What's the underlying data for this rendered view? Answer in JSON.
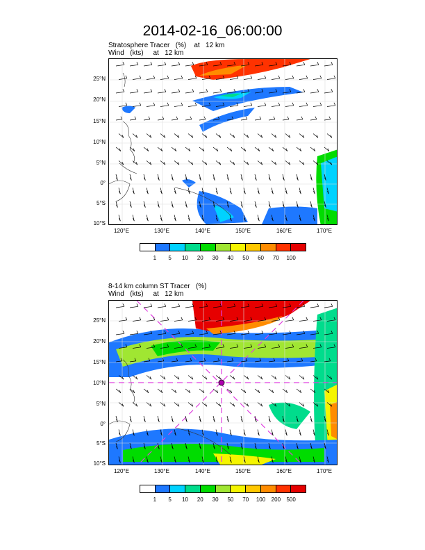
{
  "title": "2014-02-16_06:00:00",
  "panels": [
    {
      "line1": "Stratosphere Tracer   (%)    at   12 km",
      "line2": "Wind   (kts)     at   12 km",
      "lat_labels": [
        "25°N",
        "20°N",
        "15°N",
        "10°N",
        "5°N",
        "0°",
        "5°S",
        "10°S"
      ],
      "lon_labels": [
        "120°E",
        "130°E",
        "140°E",
        "150°E",
        "160°E",
        "170°E"
      ],
      "colorbar": {
        "labels": [
          "1",
          "5",
          "10",
          "20",
          "30",
          "40",
          "50",
          "60",
          "70",
          "100"
        ],
        "colors": [
          "#ffffff",
          "#1e78ff",
          "#00d2ff",
          "#00dc8c",
          "#00dc00",
          "#a0e632",
          "#f5f500",
          "#ffc800",
          "#ff8c00",
          "#ff3200",
          "#e60000"
        ]
      }
    },
    {
      "line1": "8-14 km column ST Tracer   (%)",
      "line2": "Wind   (kts)     at   12 km",
      "lat_labels": [
        "25°N",
        "20°N",
        "15°N",
        "10°N",
        "5°N",
        "0°",
        "5°S",
        "10°S"
      ],
      "lon_labels": [
        "120°E",
        "130°E",
        "140°E",
        "150°E",
        "160°E",
        "170°E"
      ],
      "colorbar": {
        "labels": [
          "1",
          "5",
          "10",
          "20",
          "30",
          "50",
          "70",
          "100",
          "200",
          "500"
        ],
        "colors": [
          "#ffffff",
          "#1e78ff",
          "#00d2ff",
          "#00dc8c",
          "#00dc00",
          "#a0e632",
          "#f5f500",
          "#ffc800",
          "#ff8c00",
          "#ff3200",
          "#e60000"
        ]
      }
    }
  ]
}
